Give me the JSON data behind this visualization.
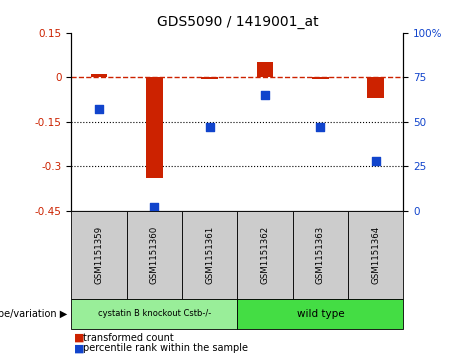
{
  "title": "GDS5090 / 1419001_at",
  "samples": [
    "GSM1151359",
    "GSM1151360",
    "GSM1151361",
    "GSM1151362",
    "GSM1151363",
    "GSM1151364"
  ],
  "transformed_count": [
    0.01,
    -0.34,
    -0.005,
    0.05,
    -0.005,
    -0.07
  ],
  "percentile_rank": [
    57,
    2,
    47,
    65,
    47,
    28
  ],
  "ylim_left": [
    -0.45,
    0.15
  ],
  "ylim_right": [
    0,
    100
  ],
  "yticks_left": [
    0.15,
    0,
    -0.15,
    -0.3,
    -0.45
  ],
  "yticks_right": [
    100,
    75,
    50,
    25,
    0
  ],
  "hlines": [
    -0.15,
    -0.3
  ],
  "bar_color": "#CC2200",
  "scatter_color": "#1144CC",
  "dashed_line_color": "#CC2200",
  "group1_label": "cystatin B knockout Cstb-/-",
  "group2_label": "wild type",
  "group1_indices": [
    0,
    1,
    2
  ],
  "group2_indices": [
    3,
    4,
    5
  ],
  "group1_color": "#99EE99",
  "group2_color": "#44DD44",
  "genotype_label": "genotype/variation",
  "legend_red": "transformed count",
  "legend_blue": "percentile rank within the sample",
  "plot_bg": "#FFFFFF",
  "label_panel_bg": "#CCCCCC",
  "bar_width": 0.3
}
